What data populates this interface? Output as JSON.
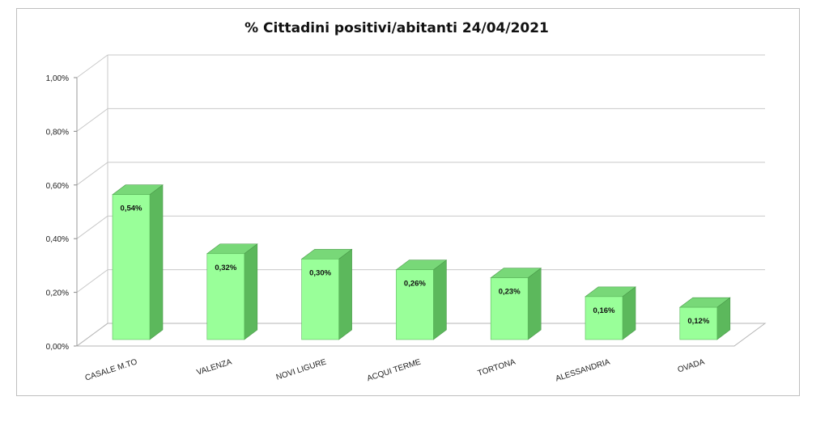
{
  "chart_data": {
    "type": "bar",
    "title": "% Cittadini positivi/abitanti 24/04/2021",
    "categories": [
      "CASALE M.TO",
      "VALENZA",
      "NOVI LIGURE",
      "ACQUI TERME",
      "TORTONA",
      "ALESSANDRIA",
      "OVADA"
    ],
    "values": [
      0.54,
      0.32,
      0.3,
      0.26,
      0.23,
      0.16,
      0.12
    ],
    "data_labels": [
      "0,54%",
      "0,32%",
      "0,30%",
      "0,26%",
      "0,23%",
      "0,16%",
      "0,12%"
    ],
    "ylim": [
      0,
      1.0
    ],
    "yticks": [
      "0,00%",
      "0,20%",
      "0,40%",
      "0,60%",
      "0,80%",
      "1,00%"
    ],
    "bar_color": "#99ff99",
    "bar_side_color": "#5cb85c",
    "bar_top_color": "#78d878",
    "grid": true,
    "legend": "none"
  }
}
